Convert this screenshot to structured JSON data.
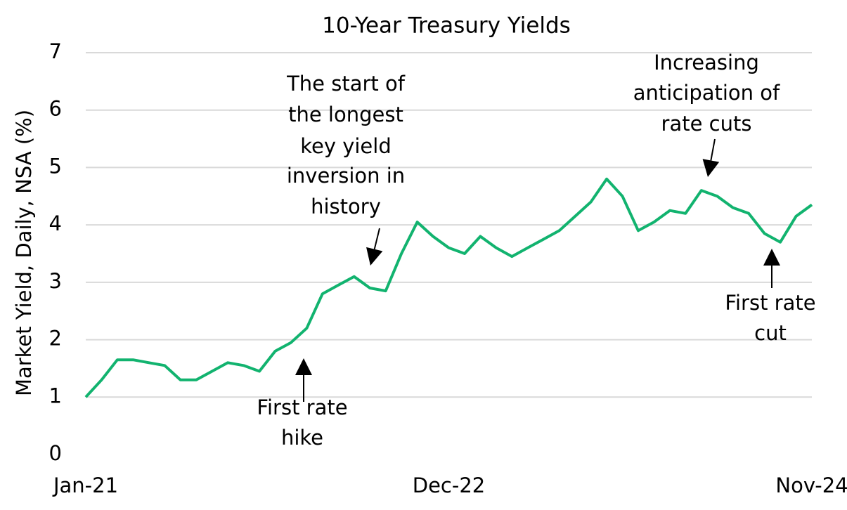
{
  "chart_data": {
    "type": "line",
    "title": "10-Year Treasury Yields",
    "y_label": "Market Yield, Daily, NSA (%)",
    "categories": [
      "Jan-21",
      null,
      null,
      null,
      null,
      null,
      null,
      null,
      null,
      null,
      null,
      null,
      null,
      null,
      null,
      null,
      null,
      null,
      null,
      null,
      null,
      null,
      null,
      "Dec-22",
      null,
      null,
      null,
      null,
      null,
      null,
      null,
      null,
      null,
      null,
      null,
      null,
      null,
      null,
      null,
      null,
      null,
      null,
      null,
      null,
      null,
      null,
      "Nov-24"
    ],
    "values": [
      1.0,
      1.3,
      1.65,
      1.65,
      1.6,
      1.55,
      1.3,
      1.3,
      1.45,
      1.6,
      1.55,
      1.45,
      1.8,
      1.95,
      2.2,
      2.8,
      2.95,
      3.1,
      2.9,
      2.85,
      3.5,
      4.05,
      3.8,
      3.6,
      3.5,
      3.8,
      3.6,
      3.45,
      3.6,
      3.75,
      3.9,
      4.15,
      4.4,
      4.8,
      4.5,
      3.9,
      4.05,
      4.25,
      4.2,
      4.6,
      4.5,
      4.3,
      4.2,
      3.85,
      3.7,
      4.15,
      4.35
    ],
    "color": "#12b36f",
    "ylim": [
      0,
      7
    ],
    "yticks": [
      0,
      1,
      2,
      3,
      4,
      5,
      6,
      7
    ],
    "grid": true,
    "annotations": [
      [
        "First rate",
        "hike"
      ],
      [
        "The start of",
        "the longest",
        "key yield",
        "inversion in",
        "history"
      ],
      [
        "Increasing",
        "anticipation of",
        "rate cuts"
      ],
      [
        "First rate",
        "cut"
      ]
    ]
  }
}
